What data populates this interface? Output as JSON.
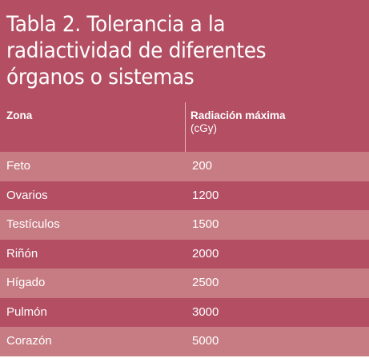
{
  "table": {
    "title": "Tabla 2. Tolerancia a la\nradiactividad de diferentes\nórganos o sistemas",
    "headers": {
      "zona": "Zona",
      "radiacion": "Radiación máxima",
      "unidad": "(cGy)"
    },
    "rows": [
      {
        "zona": "Feto",
        "radiacion": "200"
      },
      {
        "zona": "Ovarios",
        "radiacion": "1200"
      },
      {
        "zona": "Testículos",
        "radiacion": "1500"
      },
      {
        "zona": "Riñón",
        "radiacion": "2000"
      },
      {
        "zona": "Hígado",
        "radiacion": "2500"
      },
      {
        "zona": "Pulmón",
        "radiacion": "3000"
      },
      {
        "zona": "Corazón",
        "radiacion": "5000"
      }
    ]
  },
  "colors": {
    "dark_row": "#b34e63",
    "light_row": "#c77c83",
    "text": "#ffffff"
  }
}
